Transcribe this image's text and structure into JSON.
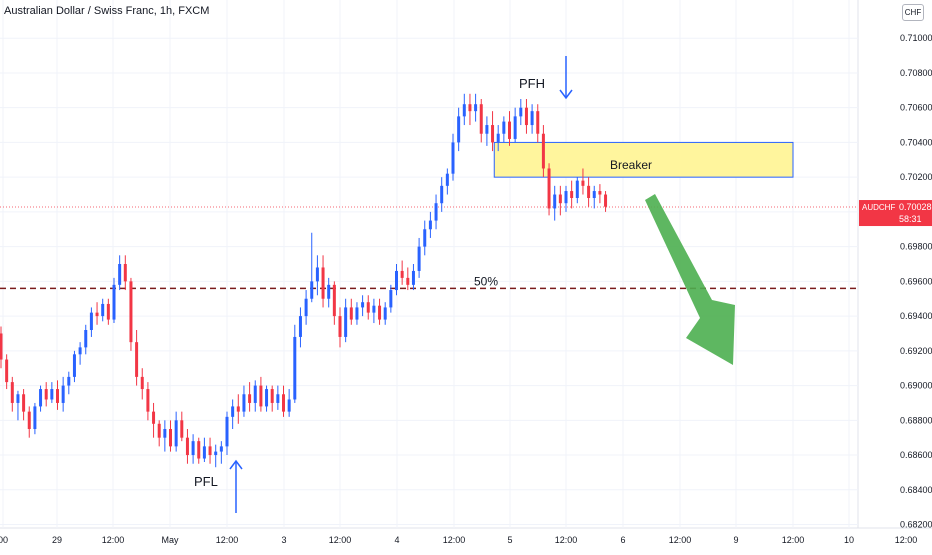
{
  "header": {
    "title": "Australian Dollar / Swiss Franc, 1h, FXCM",
    "currency": "CHF"
  },
  "price_tag": {
    "symbol": "AUDCHF",
    "price": "0.70028",
    "countdown": "58:31",
    "color": "#f23645"
  },
  "annotations": {
    "pfh": "PFH",
    "pfl": "PFL",
    "breaker": "Breaker",
    "fib": "50%"
  },
  "colors": {
    "up": "#2962ff",
    "down": "#f23645",
    "zone_fill": "#fff59d",
    "zone_border": "#2962ff",
    "arrow": "#4caf50",
    "level": "#7b1c1c",
    "marker_arrow": "#2962ff"
  },
  "chart_data": {
    "type": "candlestick",
    "title": "Australian Dollar / Swiss Franc, 1h, FXCM",
    "ylim": [
      0.6818,
      0.7122
    ],
    "y_ticks": [
      "0.71000",
      "0.70800",
      "0.70600",
      "0.70400",
      "0.70200",
      "0.70000",
      "0.69800",
      "0.69600",
      "0.69400",
      "0.69200",
      "0.69000",
      "0.68800",
      "0.68600",
      "0.68400",
      "0.68200"
    ],
    "x_ticks": [
      "00",
      "29",
      "12:00",
      "May",
      "12:00",
      "3",
      "12:00",
      "4",
      "12:00",
      "5",
      "12:00",
      "6",
      "12:00",
      "9",
      "12:00",
      "10",
      "12:00"
    ],
    "last_price": 0.70028,
    "zone": {
      "label": "Breaker",
      "from_tick": 85,
      "to_tick": 150,
      "low": 0.702,
      "high": 0.704
    },
    "level_50": {
      "label": "50%",
      "price": 0.6956
    },
    "pfh": {
      "label": "PFH",
      "tick": 120
    },
    "pfl": {
      "label": "PFL",
      "tick": 42
    },
    "forecast_arrow": {
      "from_tick": 114,
      "from_price": 0.7012,
      "to_tick": 133,
      "to_price": 0.6915
    },
    "candles_ohlc": [
      [
        0.693,
        0.6934,
        0.691,
        0.6915
      ],
      [
        0.6915,
        0.6918,
        0.6898,
        0.6902
      ],
      [
        0.6902,
        0.6905,
        0.6885,
        0.689
      ],
      [
        0.689,
        0.6897,
        0.688,
        0.6895
      ],
      [
        0.6895,
        0.6898,
        0.688,
        0.6885
      ],
      [
        0.6885,
        0.6888,
        0.687,
        0.6875
      ],
      [
        0.6875,
        0.689,
        0.6872,
        0.6888
      ],
      [
        0.6888,
        0.69,
        0.6885,
        0.6898
      ],
      [
        0.6898,
        0.6902,
        0.6888,
        0.6892
      ],
      [
        0.6892,
        0.6902,
        0.689,
        0.6898
      ],
      [
        0.6898,
        0.6903,
        0.6886,
        0.689
      ],
      [
        0.689,
        0.6905,
        0.6885,
        0.69
      ],
      [
        0.69,
        0.6908,
        0.6895,
        0.6905
      ],
      [
        0.6905,
        0.692,
        0.6902,
        0.6918
      ],
      [
        0.6918,
        0.6925,
        0.6912,
        0.6922
      ],
      [
        0.6922,
        0.6935,
        0.6918,
        0.6932
      ],
      [
        0.6932,
        0.6945,
        0.6928,
        0.6942
      ],
      [
        0.6942,
        0.6948,
        0.6935,
        0.694
      ],
      [
        0.694,
        0.695,
        0.6937,
        0.6947
      ],
      [
        0.6947,
        0.695,
        0.6935,
        0.6938
      ],
      [
        0.6938,
        0.6962,
        0.6936,
        0.6958
      ],
      [
        0.6958,
        0.6975,
        0.6955,
        0.697
      ],
      [
        0.697,
        0.6975,
        0.6955,
        0.696
      ],
      [
        0.696,
        0.6962,
        0.692,
        0.6925
      ],
      [
        0.6925,
        0.6932,
        0.69,
        0.6905
      ],
      [
        0.6905,
        0.691,
        0.6892,
        0.6898
      ],
      [
        0.6898,
        0.6902,
        0.688,
        0.6885
      ],
      [
        0.6885,
        0.689,
        0.687,
        0.6878
      ],
      [
        0.6878,
        0.688,
        0.6865,
        0.687
      ],
      [
        0.687,
        0.688,
        0.6862,
        0.6875
      ],
      [
        0.6875,
        0.688,
        0.6862,
        0.6865
      ],
      [
        0.6865,
        0.6885,
        0.6862,
        0.688
      ],
      [
        0.688,
        0.6885,
        0.6868,
        0.687
      ],
      [
        0.687,
        0.6875,
        0.6855,
        0.686
      ],
      [
        0.686,
        0.6872,
        0.6855,
        0.6868
      ],
      [
        0.6868,
        0.687,
        0.6855,
        0.6858
      ],
      [
        0.6858,
        0.687,
        0.6856,
        0.6865
      ],
      [
        0.6865,
        0.687,
        0.6855,
        0.686
      ],
      [
        0.686,
        0.6866,
        0.6853,
        0.6862
      ],
      [
        0.6862,
        0.6868,
        0.6855,
        0.6865
      ],
      [
        0.6865,
        0.6885,
        0.686,
        0.6882
      ],
      [
        0.6882,
        0.6892,
        0.6875,
        0.6888
      ],
      [
        0.6888,
        0.6895,
        0.6878,
        0.6885
      ],
      [
        0.6885,
        0.69,
        0.6882,
        0.6895
      ],
      [
        0.6895,
        0.6902,
        0.6885,
        0.689
      ],
      [
        0.689,
        0.6903,
        0.6885,
        0.69
      ],
      [
        0.69,
        0.6905,
        0.6885,
        0.6888
      ],
      [
        0.6888,
        0.69,
        0.6885,
        0.6898
      ],
      [
        0.6898,
        0.69,
        0.6885,
        0.689
      ],
      [
        0.689,
        0.69,
        0.6886,
        0.6895
      ],
      [
        0.6895,
        0.69,
        0.6882,
        0.6885
      ],
      [
        0.6885,
        0.6898,
        0.6882,
        0.6892
      ],
      [
        0.6892,
        0.6935,
        0.689,
        0.6928
      ],
      [
        0.6928,
        0.6945,
        0.6922,
        0.694
      ],
      [
        0.694,
        0.6955,
        0.6935,
        0.695
      ],
      [
        0.695,
        0.6988,
        0.6948,
        0.696
      ],
      [
        0.696,
        0.6975,
        0.6952,
        0.6968
      ],
      [
        0.6968,
        0.6975,
        0.6945,
        0.695
      ],
      [
        0.695,
        0.6962,
        0.6945,
        0.6958
      ],
      [
        0.6958,
        0.696,
        0.6935,
        0.694
      ],
      [
        0.694,
        0.6945,
        0.6922,
        0.6928
      ],
      [
        0.6928,
        0.695,
        0.6925,
        0.6945
      ],
      [
        0.6945,
        0.695,
        0.6935,
        0.6938
      ],
      [
        0.6938,
        0.6948,
        0.6935,
        0.6945
      ],
      [
        0.6945,
        0.6952,
        0.694,
        0.6948
      ],
      [
        0.6948,
        0.6952,
        0.6938,
        0.6942
      ],
      [
        0.6942,
        0.695,
        0.6936,
        0.6946
      ],
      [
        0.6946,
        0.695,
        0.6935,
        0.6938
      ],
      [
        0.6938,
        0.6948,
        0.6935,
        0.6945
      ],
      [
        0.6945,
        0.6958,
        0.6942,
        0.6955
      ],
      [
        0.6955,
        0.697,
        0.6952,
        0.6966
      ],
      [
        0.6966,
        0.6972,
        0.6958,
        0.6962
      ],
      [
        0.6962,
        0.6968,
        0.6955,
        0.6958
      ],
      [
        0.6958,
        0.697,
        0.6955,
        0.6966
      ],
      [
        0.6966,
        0.6985,
        0.6962,
        0.698
      ],
      [
        0.698,
        0.6995,
        0.6975,
        0.699
      ],
      [
        0.699,
        0.7,
        0.6985,
        0.6995
      ],
      [
        0.6995,
        0.701,
        0.699,
        0.7005
      ],
      [
        0.7005,
        0.702,
        0.7,
        0.7015
      ],
      [
        0.7015,
        0.7025,
        0.701,
        0.7022
      ],
      [
        0.7022,
        0.7045,
        0.7018,
        0.704
      ],
      [
        0.704,
        0.706,
        0.7035,
        0.7055
      ],
      [
        0.7055,
        0.7068,
        0.705,
        0.7062
      ],
      [
        0.7062,
        0.7068,
        0.705,
        0.7058
      ],
      [
        0.7058,
        0.7068,
        0.7052,
        0.7062
      ],
      [
        0.7062,
        0.7065,
        0.704,
        0.7045
      ],
      [
        0.7045,
        0.7055,
        0.7038,
        0.705
      ],
      [
        0.705,
        0.7058,
        0.7035,
        0.704
      ],
      [
        0.704,
        0.705,
        0.7035,
        0.7045
      ],
      [
        0.7045,
        0.7055,
        0.704,
        0.7052
      ],
      [
        0.7052,
        0.7058,
        0.7038,
        0.7042
      ],
      [
        0.7042,
        0.706,
        0.704,
        0.7055
      ],
      [
        0.7055,
        0.7065,
        0.705,
        0.706
      ],
      [
        0.706,
        0.7065,
        0.7045,
        0.705
      ],
      [
        0.705,
        0.7062,
        0.7045,
        0.7058
      ],
      [
        0.7058,
        0.7062,
        0.704,
        0.7045
      ],
      [
        0.7045,
        0.705,
        0.702,
        0.7025
      ],
      [
        0.7025,
        0.7028,
        0.6998,
        0.7002
      ],
      [
        0.7002,
        0.7015,
        0.6995,
        0.701
      ],
      [
        0.701,
        0.7015,
        0.6998,
        0.7005
      ],
      [
        0.7005,
        0.7015,
        0.7,
        0.7012
      ],
      [
        0.7012,
        0.7018,
        0.7002,
        0.7008
      ],
      [
        0.7008,
        0.702,
        0.7005,
        0.7018
      ],
      [
        0.7018,
        0.7025,
        0.701,
        0.7015
      ],
      [
        0.7015,
        0.702,
        0.7003,
        0.7008
      ],
      [
        0.7008,
        0.7015,
        0.7002,
        0.7012
      ],
      [
        0.7012,
        0.7016,
        0.7005,
        0.701
      ],
      [
        0.701,
        0.7012,
        0.7,
        0.7003
      ]
    ]
  }
}
